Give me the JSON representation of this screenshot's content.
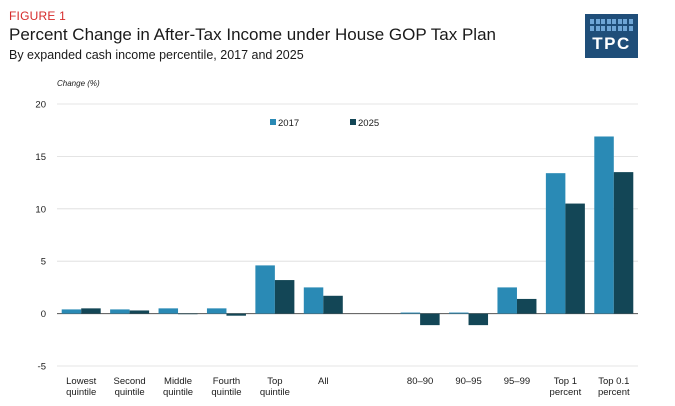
{
  "header": {
    "figure_label": "FIGURE 1",
    "title": "Percent Change in After-Tax Income under House GOP Tax Plan",
    "subtitle": "By expanded cash income percentile, 2017 and 2025"
  },
  "logo": {
    "text": "TPC",
    "color": "#1f4e79"
  },
  "chart_data": {
    "type": "bar",
    "ylabel": "Change (%)",
    "xlabel": "",
    "ylim": [
      -5,
      20
    ],
    "yticks": [
      -5,
      0,
      5,
      10,
      15,
      20
    ],
    "grid": true,
    "legend_position": "top-center",
    "categories": [
      [
        "Lowest",
        "quintile"
      ],
      [
        "Second",
        "quintile"
      ],
      [
        "Middle",
        "quintile"
      ],
      [
        "Fourth",
        "quintile"
      ],
      [
        "Top",
        "quintile"
      ],
      [
        "All"
      ],
      [
        ""
      ],
      [
        "80–90"
      ],
      [
        "90–95"
      ],
      [
        "95–99"
      ],
      [
        "Top 1",
        "percent"
      ],
      [
        "Top 0.1",
        "percent"
      ]
    ],
    "series": [
      {
        "name": "2017",
        "color": "#2a8ab5",
        "values": [
          0.4,
          0.4,
          0.5,
          0.5,
          4.6,
          2.5,
          null,
          0.1,
          0.1,
          2.5,
          13.4,
          16.9
        ]
      },
      {
        "name": "2025",
        "color": "#134656",
        "values": [
          0.5,
          0.3,
          0.0,
          -0.2,
          3.2,
          1.7,
          null,
          -1.1,
          -1.1,
          1.4,
          10.5,
          13.5
        ]
      }
    ]
  }
}
